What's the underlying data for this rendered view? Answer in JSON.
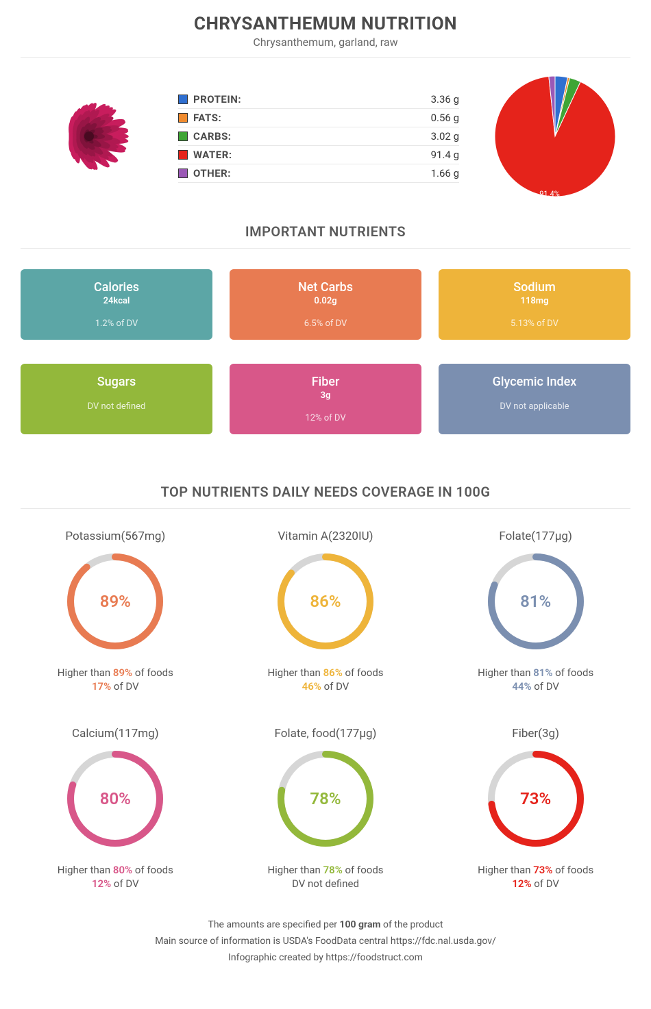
{
  "header": {
    "title": "CHRYSANTHEMUM NUTRITION",
    "subtitle": "Chrysanthemum, garland, raw"
  },
  "macros": [
    {
      "label": "PROTEIN:",
      "value": "3.36 g",
      "color": "#2f6fd0"
    },
    {
      "label": "FATS:",
      "value": "0.56 g",
      "color": "#f08b2e"
    },
    {
      "label": "CARBS:",
      "value": "3.02 g",
      "color": "#3fa535"
    },
    {
      "label": "WATER:",
      "value": "91.4 g",
      "color": "#e5231b"
    },
    {
      "label": "OTHER:",
      "value": "1.66 g",
      "color": "#9b59b6"
    }
  ],
  "pie": {
    "slices": [
      {
        "label": "protein",
        "value": 3.36,
        "color": "#2f6fd0"
      },
      {
        "label": "fats",
        "value": 0.56,
        "color": "#f08b2e"
      },
      {
        "label": "carbs",
        "value": 3.02,
        "color": "#3fa535"
      },
      {
        "label": "water",
        "value": 91.4,
        "color": "#e5231b"
      },
      {
        "label": "other",
        "value": 1.66,
        "color": "#9b59b6"
      }
    ],
    "legend_label": "91.4%",
    "legend_color": "#ffffff",
    "legend_fontsize": 11
  },
  "section_nutrients_title": "IMPORTANT NUTRIENTS",
  "cards": [
    {
      "name": "Calories",
      "value": "24kcal",
      "dv": "1.2% of DV",
      "bg": "#5ca6a6"
    },
    {
      "name": "Net Carbs",
      "value": "0.02g",
      "dv": "6.5% of DV",
      "bg": "#e87b52"
    },
    {
      "name": "Sodium",
      "value": "118mg",
      "dv": "5.13% of DV",
      "bg": "#eeb43a"
    },
    {
      "name": "Sugars",
      "value": "",
      "dv": "DV not defined",
      "bg": "#93b83b"
    },
    {
      "name": "Fiber",
      "value": "3g",
      "dv": "12% of DV",
      "bg": "#d85789"
    },
    {
      "name": "Glycemic Index",
      "value": "",
      "dv": "DV not applicable",
      "bg": "#7b8fb0"
    }
  ],
  "section_donuts_title": "TOP NUTRIENTS DAILY NEEDS COVERAGE IN 100G",
  "donuts": [
    {
      "title": "Potassium(567mg)",
      "pct": 89,
      "pct_label": "89%",
      "color": "#e87b52",
      "line1_pre": "Higher than ",
      "line1_emph": "89%",
      "line1_post": " of foods",
      "line2_emph": "17%",
      "line2_post": " of DV"
    },
    {
      "title": "Vitamin A(2320IU)",
      "pct": 86,
      "pct_label": "86%",
      "color": "#eeb43a",
      "line1_pre": "Higher than ",
      "line1_emph": "86%",
      "line1_post": " of foods",
      "line2_emph": "46%",
      "line2_post": " of DV"
    },
    {
      "title": "Folate(177µg)",
      "pct": 81,
      "pct_label": "81%",
      "color": "#7b8fb0",
      "line1_pre": "Higher than ",
      "line1_emph": "81%",
      "line1_post": " of foods",
      "line2_emph": "44%",
      "line2_post": " of DV"
    },
    {
      "title": "Calcium(117mg)",
      "pct": 80,
      "pct_label": "80%",
      "color": "#d85789",
      "line1_pre": "Higher than ",
      "line1_emph": "80%",
      "line1_post": " of foods",
      "line2_emph": "12%",
      "line2_post": " of DV"
    },
    {
      "title": "Folate, food(177µg)",
      "pct": 78,
      "pct_label": "78%",
      "color": "#93b83b",
      "line1_pre": "Higher than ",
      "line1_emph": "78%",
      "line1_post": " of foods",
      "line2_emph": "",
      "line2_post": "DV not defined"
    },
    {
      "title": "Fiber(3g)",
      "pct": 73,
      "pct_label": "73%",
      "color": "#e5231b",
      "line1_pre": "Higher than ",
      "line1_emph": "73%",
      "line1_post": " of foods",
      "line2_emph": "12%",
      "line2_post": " of DV"
    }
  ],
  "donut_track_color": "#d6d6d6",
  "donut_track_width": 10,
  "footer": {
    "line1_pre": "The amounts are specified per ",
    "line1_bold": "100 gram",
    "line1_post": " of the product",
    "line2": "Main source of information is USDA's FoodData central https://fdc.nal.usda.gov/",
    "line3": "Infographic created by https://foodstruct.com"
  },
  "flower_color": "#a0174a"
}
